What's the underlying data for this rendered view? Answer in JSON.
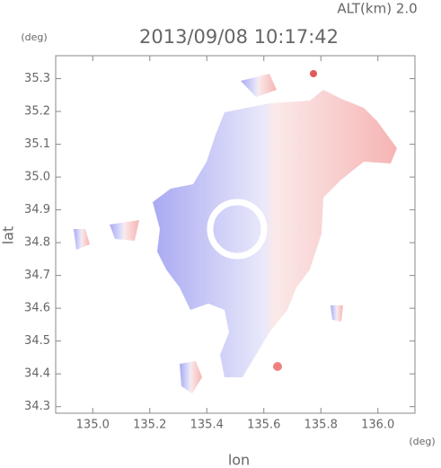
{
  "chart_data": {
    "type": "map",
    "title": "2013/09/08 10:17:42",
    "subtitle": "ALT(km) 2.0",
    "x_label": "lon",
    "y_label": "lat",
    "x_unit": "(deg)",
    "y_unit": "(deg)",
    "xlim": [
      134.87,
      136.13
    ],
    "ylim": [
      34.28,
      35.37
    ],
    "xticks": [
      {
        "value": 135.0,
        "label": "135.0"
      },
      135.2,
      135.4,
      135.6,
      135.8,
      {
        "value": 136.0,
        "label": "136.0"
      }
    ],
    "yticks": [
      34.3,
      34.4,
      34.5,
      34.6,
      34.7,
      34.8,
      34.9,
      {
        "value": 35.0,
        "label": "35.0"
      },
      35.1,
      35.2,
      35.3
    ]
  }
}
